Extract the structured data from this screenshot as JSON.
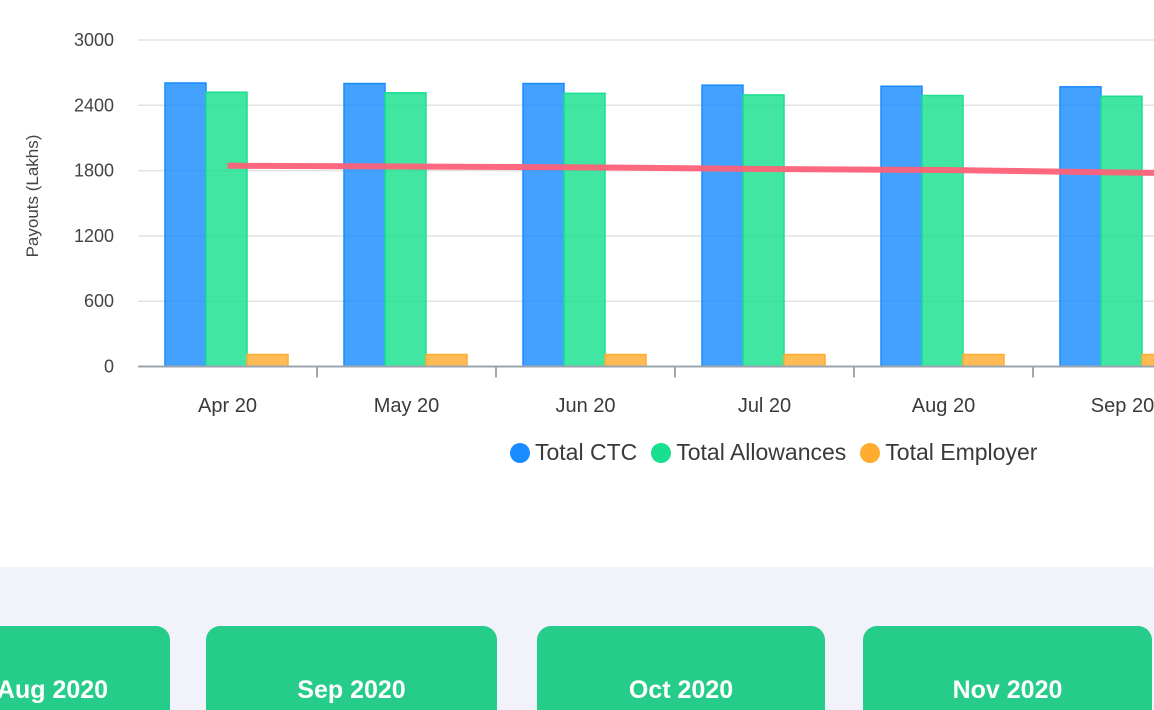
{
  "chart_data": {
    "type": "bar",
    "ylabel": "Payouts (Lakhs)",
    "xlabel": "",
    "ylim": [
      0,
      3000
    ],
    "yticks": [
      0,
      600,
      1200,
      1800,
      2400,
      3000
    ],
    "grid": true,
    "legend_position": "bottom",
    "categories": [
      "Apr 20",
      "May 20",
      "Jun 20",
      "Jul 20",
      "Aug 20",
      "Sep 20"
    ],
    "series": [
      {
        "name": "Total CTC",
        "type": "bar",
        "color": "#1a8cff",
        "values": [
          2605,
          2600,
          2600,
          2585,
          2575,
          2570
        ]
      },
      {
        "name": "Total Allowances",
        "type": "bar",
        "color": "#19e08f",
        "values": [
          2520,
          2515,
          2510,
          2495,
          2490,
          2483
        ]
      },
      {
        "name": "Total Employer",
        "type": "bar",
        "color": "#ffac2f",
        "values": [
          110,
          110,
          110,
          110,
          110,
          110
        ]
      },
      {
        "type": "line",
        "color": "#ff6178",
        "values": [
          1845,
          1838,
          1830,
          1815,
          1805,
          1783
        ]
      }
    ]
  },
  "cards": [
    "Aug 2020",
    "Sep 2020",
    "Oct 2020",
    "Nov 2020"
  ]
}
